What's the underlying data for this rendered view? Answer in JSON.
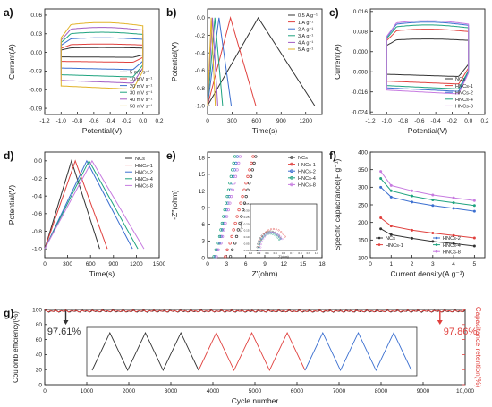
{
  "figure": {
    "background": "#ffffff"
  },
  "chart_data": [
    {
      "id": "a",
      "panel_label": "a)",
      "type": "line",
      "xlabel": "Potential(V)",
      "ylabel": "Current(A)",
      "xlim": [
        -1.2,
        0.2
      ],
      "ylim": [
        -0.1,
        0.07
      ],
      "xticks": [
        -1.2,
        -1.0,
        -0.8,
        -0.6,
        -0.4,
        -0.2,
        0.0,
        0.2
      ],
      "xtick_labels": [
        "-1.2",
        "-1.0",
        "-0.8",
        "-0.6",
        "-0.4",
        "-0.2",
        "0.0",
        "0.2"
      ],
      "yticks": [
        -0.09,
        -0.06,
        -0.03,
        0.0,
        0.03,
        0.06
      ],
      "ytick_labels": [
        "-0.09",
        "-0.06",
        "-0.03",
        "0.00",
        "0.03",
        "0.06"
      ],
      "legend_position": "bottom-right",
      "series": [
        {
          "name": "5 mV s⁻¹",
          "color": "#333333",
          "top": 0.007,
          "bot": -0.008
        },
        {
          "name": "10 mV s⁻¹",
          "color": "#e0413e",
          "top": 0.012,
          "bot": -0.016
        },
        {
          "name": "20 mV s⁻¹",
          "color": "#3b6fd0",
          "top": 0.021,
          "bot": -0.028
        },
        {
          "name": "30 mV s⁻¹",
          "color": "#1fa37f",
          "top": 0.029,
          "bot": -0.04
        },
        {
          "name": "40 mV s⁻¹",
          "color": "#a15bc2",
          "top": 0.036,
          "bot": -0.05
        },
        {
          "name": "50 mV s⁻¹",
          "color": "#e2b32a",
          "top": 0.043,
          "bot": -0.06
        }
      ]
    },
    {
      "id": "b",
      "panel_label": "b)",
      "type": "line",
      "xlabel": "Time(s)",
      "ylabel": "Potential(V)",
      "xlim": [
        0,
        1400
      ],
      "ylim": [
        -1.1,
        0.1
      ],
      "xticks": [
        0,
        300,
        600,
        900,
        1200
      ],
      "xtick_labels": [
        "0",
        "300",
        "600",
        "900",
        "1200"
      ],
      "yticks": [
        -1.0,
        -0.8,
        -0.6,
        -0.4,
        -0.2,
        0.0
      ],
      "ytick_labels": [
        "-1.0",
        "-0.8",
        "-0.6",
        "-0.4",
        "-0.2",
        "0.0"
      ],
      "legend_position": "top-right",
      "series": [
        {
          "name": "0.5 A g⁻¹",
          "color": "#333333",
          "charge_end": 620,
          "discharge_end": 1310
        },
        {
          "name": "1 A g⁻¹",
          "color": "#e0413e",
          "charge_end": 280,
          "discharge_end": 590
        },
        {
          "name": "2 A g⁻¹",
          "color": "#3b6fd0",
          "charge_end": 140,
          "discharge_end": 290
        },
        {
          "name": "3 A g⁻¹",
          "color": "#1fa37f",
          "charge_end": 90,
          "discharge_end": 185
        },
        {
          "name": "4 A g⁻¹",
          "color": "#a15bc2",
          "charge_end": 60,
          "discharge_end": 125
        },
        {
          "name": "5 A g⁻¹",
          "color": "#e2b32a",
          "charge_end": 45,
          "discharge_end": 95
        }
      ]
    },
    {
      "id": "c",
      "panel_label": "c)",
      "type": "line",
      "xlabel": "Potential(V)",
      "ylabel": "Current(A)",
      "xlim": [
        -1.2,
        0.2
      ],
      "ylim": [
        -0.025,
        0.017
      ],
      "xticks": [
        -1.2,
        -1.0,
        -0.8,
        -0.6,
        -0.4,
        -0.2,
        0.0,
        0.2
      ],
      "xtick_labels": [
        "-1.2",
        "-1.0",
        "-0.8",
        "-0.6",
        "-0.4",
        "-0.2",
        "0.0",
        "0.2"
      ],
      "yticks": [
        -0.024,
        -0.016,
        -0.008,
        0.0,
        0.008,
        0.016
      ],
      "ytick_labels": [
        "-0.024",
        "-0.016",
        "-0.008",
        "0.000",
        "0.008",
        "0.016"
      ],
      "legend_position": "bottom-right",
      "series": [
        {
          "name": "NCs",
          "color": "#333333",
          "top": 0.0045,
          "bot": -0.01
        },
        {
          "name": "HNCs-1",
          "color": "#e0413e",
          "top": 0.008,
          "bot": -0.013
        },
        {
          "name": "HNCs-2",
          "color": "#3b6fd0",
          "top": 0.0105,
          "bot": -0.016
        },
        {
          "name": "HNCs-4",
          "color": "#1fa37f",
          "top": 0.0095,
          "bot": -0.015
        },
        {
          "name": "HNCs-8",
          "color": "#c77be0",
          "top": 0.011,
          "bot": -0.017
        }
      ]
    },
    {
      "id": "d",
      "panel_label": "d)",
      "type": "line",
      "xlabel": "Time(s)",
      "ylabel": "Potential(V)",
      "xlim": [
        0,
        1500
      ],
      "ylim": [
        -1.1,
        0.1
      ],
      "xticks": [
        0,
        300,
        600,
        900,
        1200,
        1500
      ],
      "xtick_labels": [
        "0",
        "300",
        "600",
        "900",
        "1200",
        "1500"
      ],
      "yticks": [
        -1.0,
        -0.8,
        -0.6,
        -0.4,
        -0.2,
        0.0
      ],
      "ytick_labels": [
        "-1.0",
        "-0.8",
        "-0.6",
        "-0.4",
        "-0.2",
        "0.0"
      ],
      "legend_position": "top-right",
      "series": [
        {
          "name": "NCs",
          "color": "#333333",
          "charge_end": 350,
          "discharge_end": 720
        },
        {
          "name": "HNCs-1",
          "color": "#e0413e",
          "charge_end": 400,
          "discharge_end": 820
        },
        {
          "name": "HNCs-2",
          "color": "#3b6fd0",
          "charge_end": 550,
          "discharge_end": 1150
        },
        {
          "name": "HNCs-4",
          "color": "#1fa37f",
          "charge_end": 580,
          "discharge_end": 1220
        },
        {
          "name": "HNCs-8",
          "color": "#c77be0",
          "charge_end": 620,
          "discharge_end": 1300
        }
      ]
    },
    {
      "id": "e",
      "panel_label": "e)",
      "type": "scatter",
      "xlabel": "Z'(ohm)",
      "ylabel": "-Z''(ohm)",
      "xlim": [
        0,
        18
      ],
      "ylim": [
        0,
        19
      ],
      "xticks": [
        0,
        3,
        6,
        9,
        12,
        15,
        18
      ],
      "xtick_labels": [
        "0",
        "3",
        "6",
        "9",
        "12",
        "15",
        "18"
      ],
      "yticks": [
        0,
        3,
        6,
        9,
        12,
        15,
        18
      ],
      "ytick_labels": [
        "0",
        "3",
        "6",
        "9",
        "12",
        "15",
        "18"
      ],
      "legend_position": "top-right",
      "series": [
        {
          "name": "NCs",
          "color": "#333333",
          "x0": 3.6,
          "slope": 4.8
        },
        {
          "name": "HNCs-1",
          "color": "#e0413e",
          "x0": 2.8,
          "slope": 4.3
        },
        {
          "name": "HNCs-2",
          "color": "#3b6fd0",
          "x0": 1.2,
          "slope": 5.6
        },
        {
          "name": "HNCs-4",
          "color": "#1fa37f",
          "x0": 1.0,
          "slope": 6.0
        },
        {
          "name": "HNCs-8",
          "color": "#c77be0",
          "x0": 1.4,
          "slope": 5.2
        }
      ],
      "inset": {
        "xlim": [
          0.2,
          1.0
        ],
        "ylim": [
          0.0,
          0.35
        ],
        "xtick_labels": [
          "0.2",
          "0.3",
          "0.4",
          "0.5",
          "0.6",
          "0.7",
          "0.8",
          "0.9",
          "1.0"
        ],
        "ytick_labels": [
          "0.00",
          "0.05",
          "0.10",
          "0.15",
          "0.20",
          "0.25",
          "0.30",
          "0.35"
        ],
        "xlabel": "Z'(ohm)",
        "ylabel": "-Z''(ohm)"
      }
    },
    {
      "id": "f",
      "panel_label": "f)",
      "type": "line",
      "xlabel": "Current density(A g⁻¹)",
      "ylabel": "Specific capacitance(F g⁻¹)",
      "xlim": [
        0,
        5.5
      ],
      "ylim": [
        100,
        400
      ],
      "xticks": [
        0,
        1,
        2,
        3,
        4,
        5
      ],
      "xtick_labels": [
        "0",
        "1",
        "2",
        "3",
        "4",
        "5"
      ],
      "yticks": [
        100,
        150,
        200,
        250,
        300,
        350,
        400
      ],
      "ytick_labels": [
        "100",
        "150",
        "200",
        "250",
        "300",
        "350",
        "400"
      ],
      "legend_position": "bottom",
      "x": [
        0.5,
        1,
        2,
        3,
        4,
        5
      ],
      "series": [
        {
          "name": "NCs",
          "color": "#333333",
          "values": [
            182,
            165,
            155,
            146,
            140,
            133
          ]
        },
        {
          "name": "HNCs-1",
          "color": "#e0413e",
          "values": [
            213,
            190,
            178,
            170,
            163,
            156
          ]
        },
        {
          "name": "HNCs-2",
          "color": "#3b6fd0",
          "values": [
            300,
            272,
            258,
            248,
            240,
            232
          ]
        },
        {
          "name": "HNCs-4",
          "color": "#1fa37f",
          "values": [
            325,
            290,
            275,
            264,
            256,
            248
          ]
        },
        {
          "name": "HNCs-8",
          "color": "#c77be0",
          "values": [
            345,
            305,
            290,
            278,
            270,
            262
          ]
        }
      ]
    },
    {
      "id": "g",
      "panel_label": "g)",
      "type": "line",
      "xlabel": "Cycle number",
      "ylabel_left": "Coulomb efficiency(%)",
      "ylabel_right": "Capacitance retention(%)",
      "xlim": [
        0,
        10000
      ],
      "ylim": [
        0,
        100
      ],
      "xticks": [
        0,
        1000,
        2000,
        3000,
        4000,
        5000,
        6000,
        7000,
        8000,
        9000,
        10000
      ],
      "xtick_labels": [
        "0",
        "1000",
        "2000",
        "3000",
        "4000",
        "5000",
        "6000",
        "7000",
        "8000",
        "9000",
        "10,000"
      ],
      "yticks": [
        0,
        20,
        40,
        60,
        80,
        100
      ],
      "ytick_labels": [
        "0",
        "20",
        "40",
        "60",
        "80",
        "100"
      ],
      "series": [
        {
          "name": "Coulomb efficiency",
          "color": "#333333",
          "value": 97.61
        },
        {
          "name": "Capacitance retention",
          "color": "#e0413e",
          "value": 97.86
        }
      ],
      "annotations": [
        {
          "text": "97.61%",
          "x": 500,
          "color": "#333333"
        },
        {
          "text": "97.86%",
          "x": 9400,
          "color": "#e0413e"
        }
      ],
      "inset": {
        "segments": [
          {
            "color": "#333333",
            "cycles": 3
          },
          {
            "color": "#e0413e",
            "cycles": 3
          },
          {
            "color": "#3b6fd0",
            "cycles": 3
          }
        ]
      }
    }
  ]
}
